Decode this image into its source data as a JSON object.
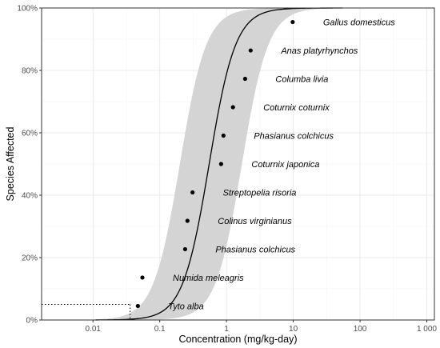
{
  "chart_data": {
    "type": "scatter",
    "xlabel": "Concentration (mg/kg-day)",
    "ylabel": "Species Affected",
    "x_scale": "log",
    "xlim": [
      0.0017,
      1300
    ],
    "ylim": [
      0,
      1
    ],
    "x_ticks": [
      0.01,
      0.1,
      1,
      10,
      100,
      1000
    ],
    "x_tick_labels": [
      "0.01",
      "0.1",
      "1",
      "10",
      "100",
      "1 000"
    ],
    "y_ticks": [
      0,
      0.2,
      0.4,
      0.6,
      0.8,
      1.0
    ],
    "y_tick_labels": [
      "0%",
      "20%",
      "40%",
      "60%",
      "80%",
      "100%"
    ],
    "grid": true,
    "points": [
      {
        "species": "Tyto alba",
        "x": 0.047,
        "y": 0.045
      },
      {
        "species": "Numida meleagris",
        "x": 0.055,
        "y": 0.136
      },
      {
        "species": "Phasianus colchicus",
        "x": 0.24,
        "y": 0.227
      },
      {
        "species": "Colinus virginianus",
        "x": 0.26,
        "y": 0.318
      },
      {
        "species": "Streptopelia risoria",
        "x": 0.31,
        "y": 0.409
      },
      {
        "species": "Coturnix japonica",
        "x": 0.83,
        "y": 0.5
      },
      {
        "species": "Phasianus colchicus",
        "x": 0.9,
        "y": 0.591
      },
      {
        "species": "Coturnix coturnix",
        "x": 1.25,
        "y": 0.682
      },
      {
        "species": "Columba livia",
        "x": 1.9,
        "y": 0.773
      },
      {
        "species": "Anas platyrhynchos",
        "x": 2.3,
        "y": 0.864
      },
      {
        "species": "Gallus domesticus",
        "x": 9.8,
        "y": 0.955
      }
    ],
    "fit_curve": {
      "type": "log-logistic",
      "median_x": 0.55,
      "slope": 2.2,
      "x_range": [
        0.011,
        55
      ]
    },
    "confidence_band": {
      "median_lower_x": 0.2,
      "median_upper_x": 1.7,
      "slope": 2.2,
      "x_range": [
        0.0035,
        900
      ]
    },
    "reference_lines": {
      "x": 0.036,
      "y": 0.05
    },
    "colors": {
      "band": "#d4d4d4",
      "curve": "#000000",
      "points": "#000000",
      "grid_major": "#ebebeb",
      "grid_minor": "#f5f5f5",
      "panel_border": "#333333"
    }
  }
}
